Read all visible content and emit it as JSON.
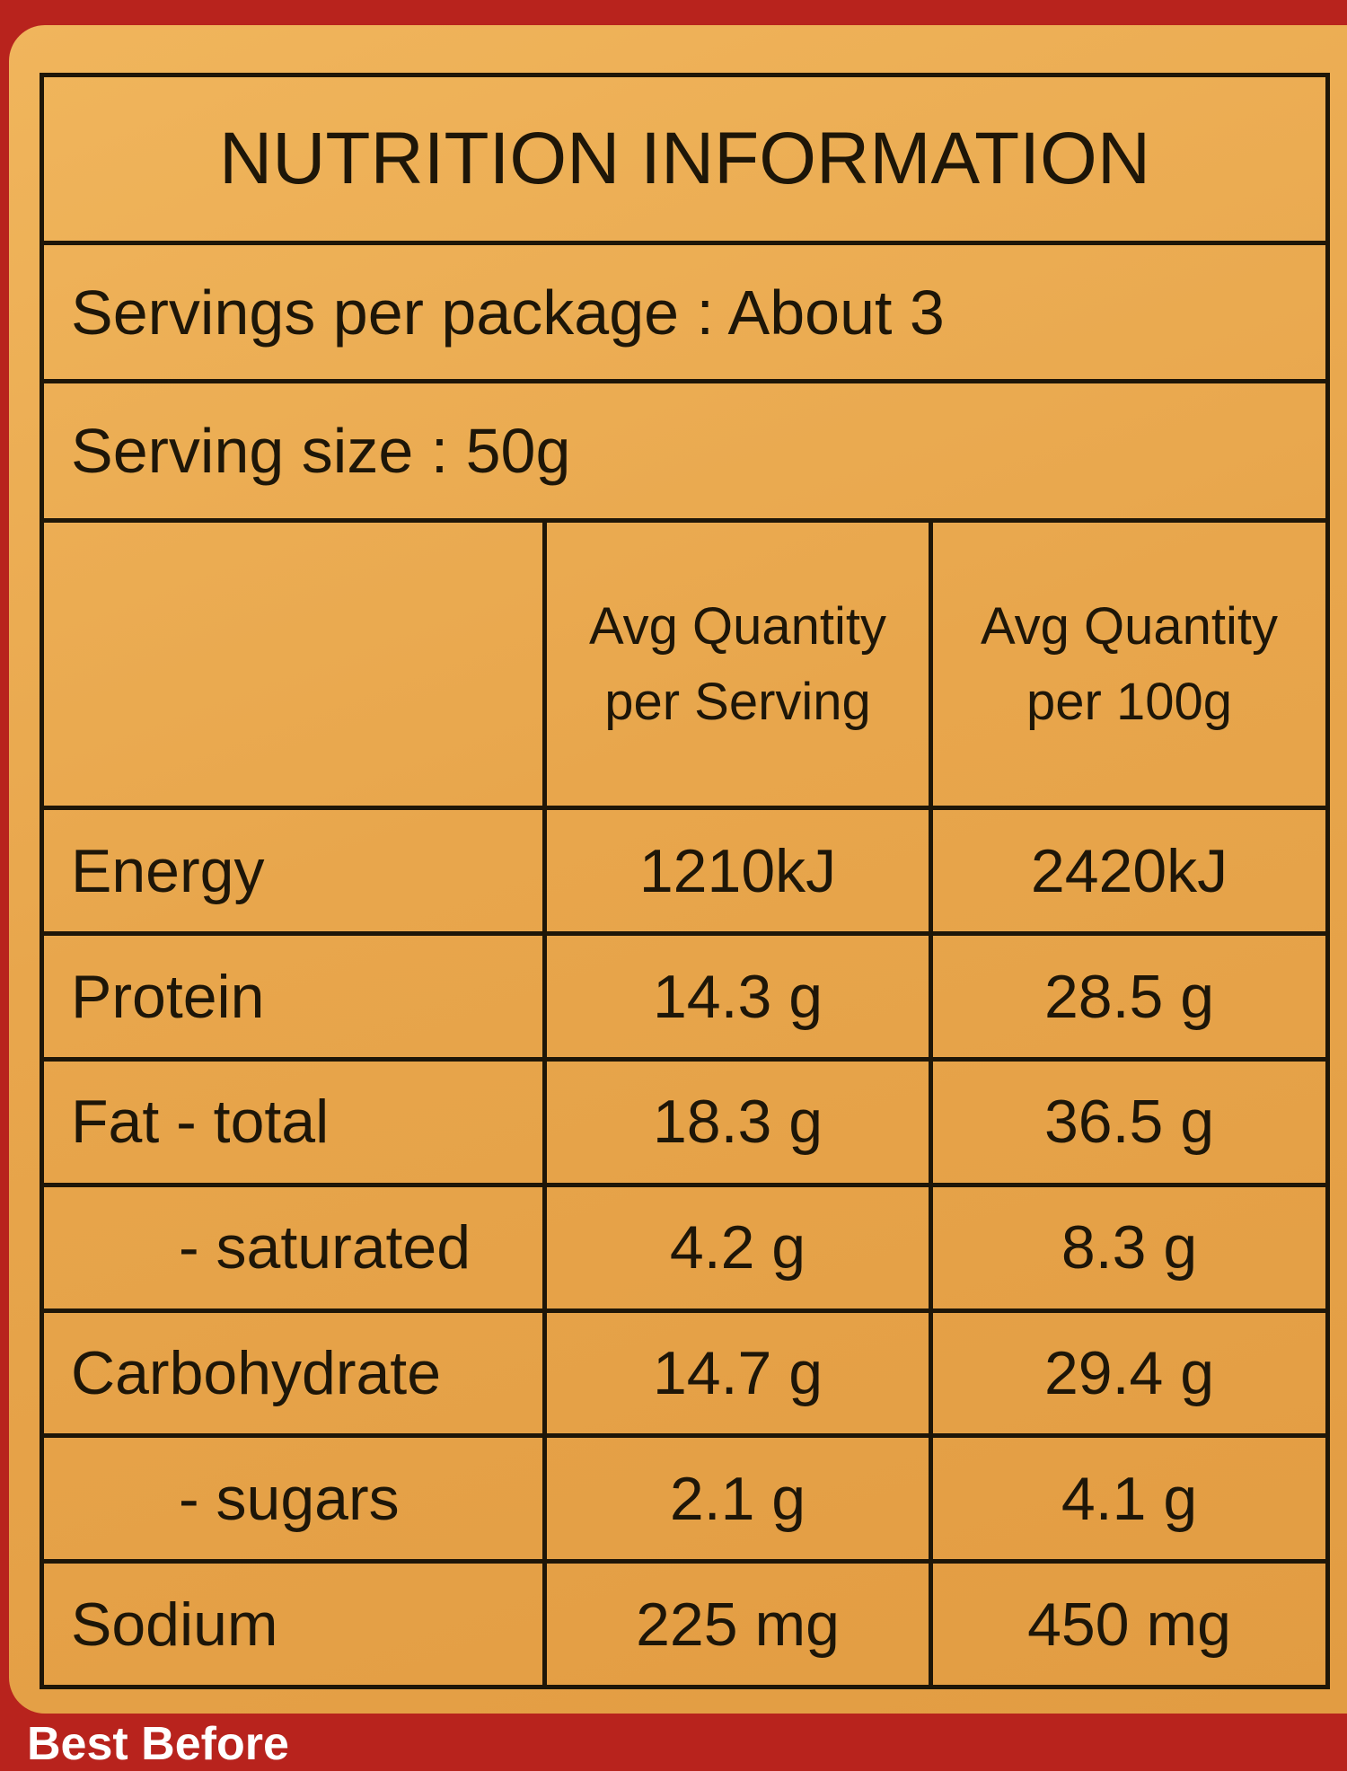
{
  "header": {
    "title": "NUTRITION INFORMATION"
  },
  "servings_per_package": "Servings per package : About 3",
  "serving_size": "Serving size : 50g",
  "table": {
    "columns": [
      [
        "Avg Quantity",
        "per Serving"
      ],
      [
        "Avg Quantity",
        "per 100g"
      ]
    ],
    "rows": [
      [
        "Energy",
        "1210kJ",
        "2420kJ"
      ],
      [
        "Protein",
        "14.3 g",
        "28.5 g"
      ],
      [
        "Fat - total",
        "18.3 g",
        "36.5 g"
      ],
      [
        "- saturated",
        "4.2 g",
        "8.3 g"
      ],
      [
        "Carbohydrate",
        "14.7 g",
        "29.4 g"
      ],
      [
        "- sugars",
        "2.1 g",
        "4.1 g"
      ],
      [
        "Sodium",
        "225 mg",
        "450 mg"
      ]
    ]
  },
  "footer": "Best Before"
}
